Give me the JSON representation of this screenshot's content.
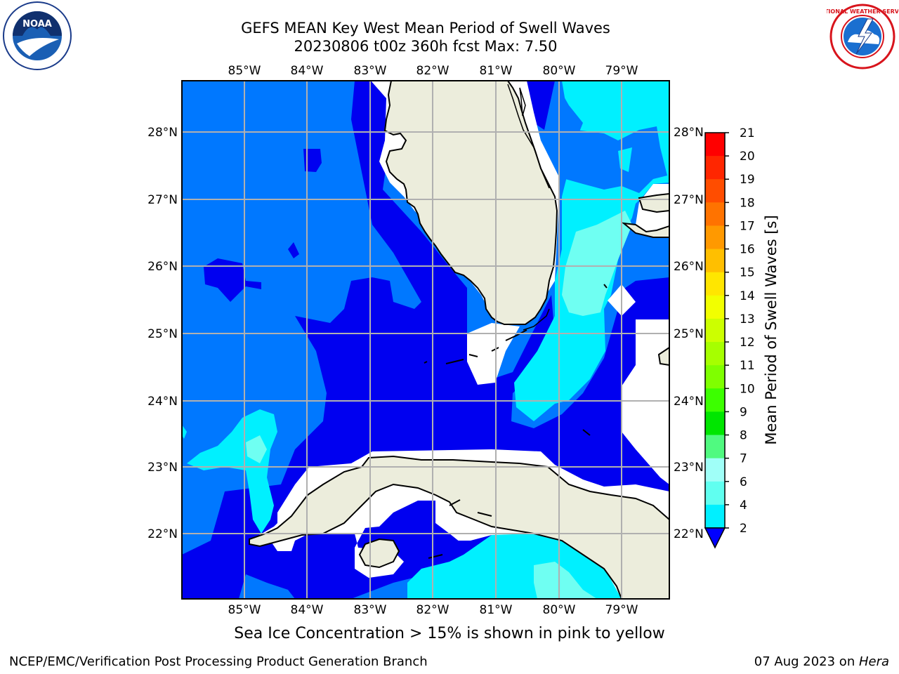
{
  "header": {
    "title_line1": "GEFS MEAN Key West Mean Period of Swell Waves",
    "title_line2": "20230806 t00z 360h fcst   Max: 7.50"
  },
  "logos": {
    "left": {
      "icon": "noaa-logo-icon",
      "text": "NOAA"
    },
    "right": {
      "icon": "nws-logo-icon",
      "text": "NATIONAL WEATHER SERVICE"
    }
  },
  "map": {
    "lon_labels": [
      "85°W",
      "84°W",
      "83°W",
      "82°W",
      "81°W",
      "80°W",
      "79°W"
    ],
    "lat_labels": [
      "28°N",
      "27°N",
      "26°N",
      "25°N",
      "24°N",
      "23°N",
      "22°N"
    ],
    "land_color": "#eceddc",
    "ocean_colors": {
      "2-4": "#0055ff",
      "4-6": "#00e8ff"
    }
  },
  "colorbar": {
    "label": "Mean Period of Swell Waves [s]",
    "ticks": [
      "21",
      "20",
      "19",
      "18",
      "17",
      "16",
      "15",
      "14",
      "13",
      "12",
      "11",
      "10",
      "9",
      "8",
      "7",
      "6",
      "4",
      "2"
    ],
    "colors": [
      "#ff0000",
      "#ff2600",
      "#ff4d00",
      "#ff7300",
      "#ff9900",
      "#ffbf00",
      "#ffe600",
      "#f2ff00",
      "#ccff00",
      "#a6ff00",
      "#7fff00",
      "#3cff00",
      "#00e600",
      "#50fa80",
      "#a0fff8",
      "#60fff0",
      "#00f0ff",
      "#0055ff",
      "#0000ff"
    ]
  },
  "footer": {
    "ice_note": "Sea Ice Concentration > 15% is shown in pink to yellow",
    "credit": "NCEP/EMC/Verification Post Processing Product Generation Branch",
    "date": "07 Aug 2023 on ",
    "machine": "Hera"
  }
}
